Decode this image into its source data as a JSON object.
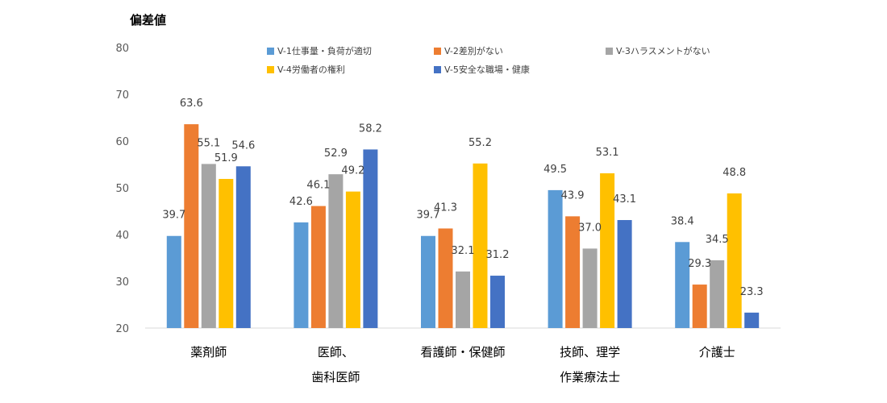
{
  "chart_data": {
    "type": "bar",
    "ylabel": "偏差値",
    "ylim": [
      20,
      80
    ],
    "yticks": [
      80,
      70,
      60,
      50,
      40,
      30,
      20
    ],
    "grid": false,
    "legend_position": "top-right",
    "categories": [
      [
        "薬剤師"
      ],
      [
        "医師、",
        "歯科医師"
      ],
      [
        "看護師・保健師"
      ],
      [
        "技師、理学",
        "作業療法士"
      ],
      [
        "介護士"
      ]
    ],
    "series": [
      {
        "name": "V-1仕事量・負荷が適切",
        "color": "#5B9BD5",
        "values": [
          39.7,
          42.6,
          39.7,
          49.5,
          38.4
        ]
      },
      {
        "name": "V-2差別がない",
        "color": "#ED7D31",
        "values": [
          63.6,
          46.1,
          41.3,
          43.9,
          29.3
        ]
      },
      {
        "name": "V-3ハラスメントがない",
        "color": "#A5A5A5",
        "values": [
          55.1,
          52.9,
          32.1,
          37.0,
          34.5
        ]
      },
      {
        "name": "V-4労働者の権利",
        "color": "#FFC000",
        "values": [
          51.9,
          49.2,
          55.2,
          53.1,
          48.8
        ]
      },
      {
        "name": "V-5安全な職場・健康",
        "color": "#4472C4",
        "values": [
          54.6,
          58.2,
          31.2,
          43.1,
          23.3
        ]
      }
    ]
  }
}
